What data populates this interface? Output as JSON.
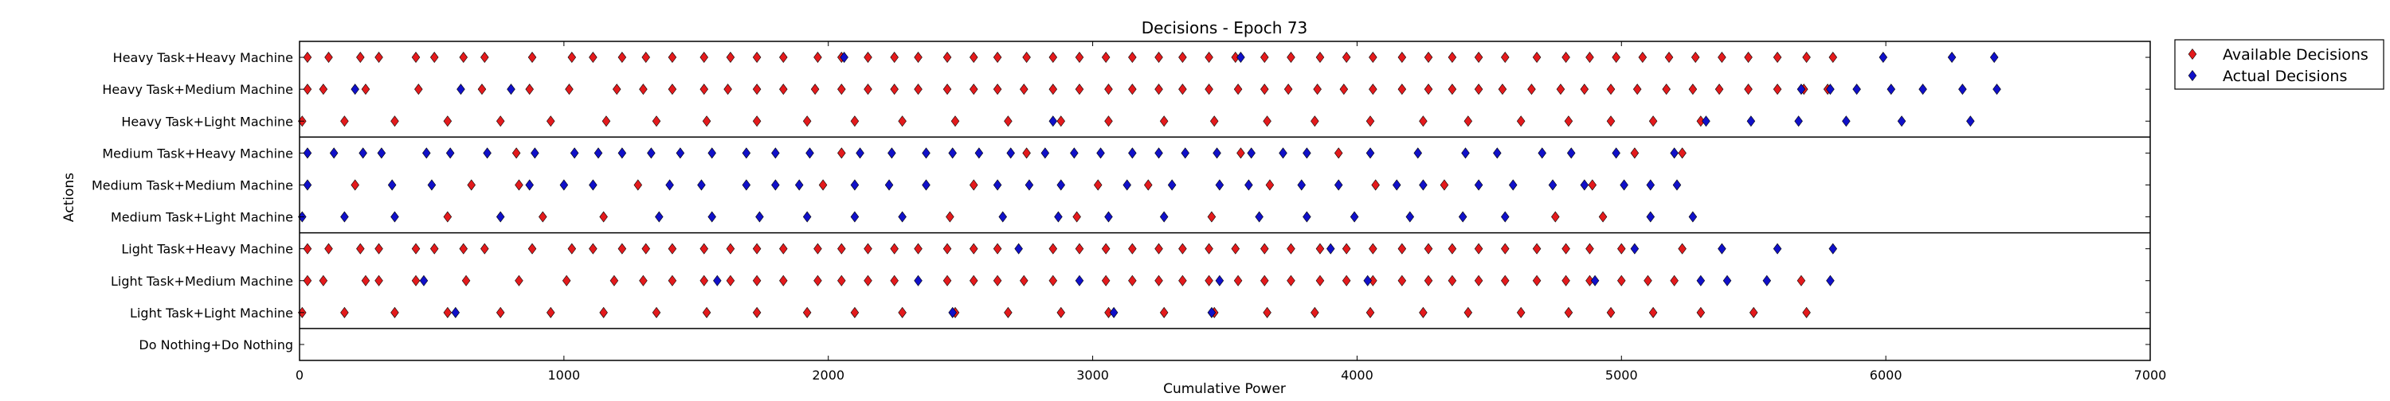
{
  "chart_data": {
    "type": "scatter",
    "title": "Decisions - Epoch 73",
    "xlabel": "Cumulative Power",
    "ylabel": "Actions",
    "xlim": [
      0,
      7000
    ],
    "xticks": [
      "0",
      "1000",
      "2000",
      "3000",
      "4000",
      "5000",
      "6000",
      "7000"
    ],
    "categories": [
      "Heavy Task+Heavy Machine",
      "Heavy Task+Medium Machine",
      "Heavy Task+Light Machine",
      "Medium Task+Heavy Machine",
      "Medium Task+Medium Machine",
      "Medium Task+Light Machine",
      "Light Task+Heavy Machine",
      "Light Task+Medium Machine",
      "Light Task+Light Machine",
      "Do Nothing+Do Nothing"
    ],
    "group_separators_after_category_index": [
      2,
      5,
      8
    ],
    "legend": {
      "position": "outside-right-top"
    },
    "colors": {
      "available": "#e31a1c",
      "actual": "#1010c8"
    },
    "series": [
      {
        "name": "Available Decisions",
        "color": "#e31a1c",
        "rows": [
          {
            "category": "Heavy Task+Heavy Machine",
            "x": [
              30,
              110,
              230,
              300,
              440,
              510,
              620,
              700,
              880,
              1030,
              1110,
              1220,
              1310,
              1410,
              1530,
              1630,
              1730,
              1830,
              1960,
              2050,
              2150,
              2250,
              2340,
              2450,
              2550,
              2640,
              2750,
              2850,
              2950,
              3050,
              3150,
              3250,
              3340,
              3440,
              3540,
              3650,
              3750,
              3860,
              3960,
              4060,
              4170,
              4270,
              4360,
              4460,
              4560,
              4680,
              4790,
              4880,
              4980,
              5080,
              5180,
              5280,
              5380,
              5480,
              5590,
              5700,
              5800
            ]
          },
          {
            "category": "Heavy Task+Medium Machine",
            "x": [
              30,
              90,
              250,
              450,
              690,
              870,
              1020,
              1200,
              1300,
              1410,
              1530,
              1620,
              1730,
              1830,
              1950,
              2050,
              2150,
              2250,
              2340,
              2450,
              2550,
              2640,
              2740,
              2850,
              2950,
              3060,
              3150,
              3250,
              3340,
              3440,
              3550,
              3650,
              3740,
              3850,
              3950,
              4060,
              4170,
              4270,
              4360,
              4460,
              4550,
              4660,
              4770,
              4860,
              4960,
              5060,
              5170,
              5270,
              5370,
              5480,
              5590,
              5690,
              5780
            ]
          },
          {
            "category": "Heavy Task+Light Machine",
            "x": [
              10,
              170,
              360,
              560,
              760,
              950,
              1160,
              1350,
              1540,
              1730,
              1920,
              2100,
              2280,
              2480,
              2680,
              2880,
              3060,
              3270,
              3460,
              3660,
              3840,
              4050,
              4250,
              4420,
              4620,
              4800,
              4960,
              5120,
              5300
            ]
          },
          {
            "category": "Medium Task+Heavy Machine",
            "x": [
              820,
              2050,
              2750,
              3560,
              3930,
              5050,
              5230
            ]
          },
          {
            "category": "Medium Task+Medium Machine",
            "x": [
              210,
              650,
              830,
              1280,
              1980,
              2550,
              3020,
              3210,
              3670,
              4070,
              4330,
              4890
            ]
          },
          {
            "category": "Medium Task+Light Machine",
            "x": [
              560,
              920,
              1150,
              2460,
              2940,
              3450,
              4750,
              4930
            ]
          },
          {
            "category": "Light Task+Heavy Machine",
            "x": [
              30,
              110,
              230,
              300,
              440,
              510,
              620,
              700,
              880,
              1030,
              1110,
              1220,
              1310,
              1410,
              1530,
              1630,
              1730,
              1830,
              1960,
              2050,
              2150,
              2250,
              2340,
              2450,
              2550,
              2640,
              2850,
              2950,
              3050,
              3150,
              3250,
              3340,
              3440,
              3540,
              3650,
              3750,
              3860,
              3960,
              4060,
              4170,
              4270,
              4360,
              4460,
              4560,
              4680,
              4790,
              4880,
              5000,
              5230
            ]
          },
          {
            "category": "Light Task+Medium Machine",
            "x": [
              30,
              90,
              250,
              300,
              440,
              630,
              830,
              1010,
              1190,
              1300,
              1410,
              1530,
              1630,
              1730,
              1830,
              1960,
              2050,
              2150,
              2250,
              2450,
              2550,
              2640,
              2740,
              2850,
              3050,
              3150,
              3250,
              3340,
              3440,
              3550,
              3650,
              3750,
              3860,
              3960,
              4060,
              4170,
              4270,
              4360,
              4460,
              4560,
              4680,
              4790,
              4880,
              5000,
              5100,
              5200,
              5680
            ]
          },
          {
            "category": "Light Task+Light Machine",
            "x": [
              10,
              170,
              360,
              560,
              760,
              950,
              1150,
              1350,
              1540,
              1730,
              1920,
              2100,
              2280,
              2480,
              2680,
              2880,
              3060,
              3270,
              3460,
              3660,
              3840,
              4050,
              4250,
              4420,
              4620,
              4800,
              4960,
              5120,
              5300,
              5500,
              5700
            ]
          }
        ]
      },
      {
        "name": "Actual Decisions",
        "color": "#1010c8",
        "rows": [
          {
            "category": "Heavy Task+Heavy Machine",
            "x": [
              2060,
              3560,
              5990,
              6250,
              6410
            ]
          },
          {
            "category": "Heavy Task+Medium Machine",
            "x": [
              210,
              610,
              800,
              5680,
              5790,
              5890,
              6020,
              6140,
              6290,
              6420
            ]
          },
          {
            "category": "Heavy Task+Light Machine",
            "x": [
              2850,
              5320,
              5490,
              5670,
              5850,
              6060,
              6320
            ]
          },
          {
            "category": "Medium Task+Heavy Machine",
            "x": [
              30,
              130,
              240,
              310,
              480,
              570,
              710,
              890,
              1040,
              1130,
              1220,
              1330,
              1440,
              1560,
              1690,
              1800,
              1930,
              2120,
              2240,
              2370,
              2470,
              2570,
              2690,
              2820,
              2930,
              3030,
              3150,
              3250,
              3350,
              3470,
              3600,
              3720,
              3810,
              4050,
              4230,
              4410,
              4530,
              4700,
              4810,
              4980,
              5200
            ]
          },
          {
            "category": "Medium Task+Medium Machine",
            "x": [
              30,
              350,
              500,
              870,
              1000,
              1110,
              1400,
              1520,
              1690,
              1800,
              1890,
              2100,
              2230,
              2370,
              2640,
              2760,
              2880,
              3130,
              3300,
              3480,
              3590,
              3790,
              3930,
              4150,
              4250,
              4460,
              4590,
              4740,
              4860,
              5010,
              5110,
              5210
            ]
          },
          {
            "category": "Medium Task+Light Machine",
            "x": [
              10,
              170,
              360,
              760,
              1360,
              1560,
              1740,
              1920,
              2100,
              2280,
              2660,
              2870,
              3060,
              3270,
              3630,
              3810,
              3990,
              4200,
              4400,
              4560,
              5110,
              5270
            ]
          },
          {
            "category": "Light Task+Heavy Machine",
            "x": [
              2720,
              3900,
              5050,
              5380,
              5590,
              5800
            ]
          },
          {
            "category": "Light Task+Medium Machine",
            "x": [
              470,
              1580,
              2340,
              2950,
              3480,
              4040,
              4900,
              5300,
              5400,
              5550,
              5790
            ]
          },
          {
            "category": "Light Task+Light Machine",
            "x": [
              590,
              2470,
              3080,
              3450
            ]
          }
        ]
      }
    ]
  }
}
